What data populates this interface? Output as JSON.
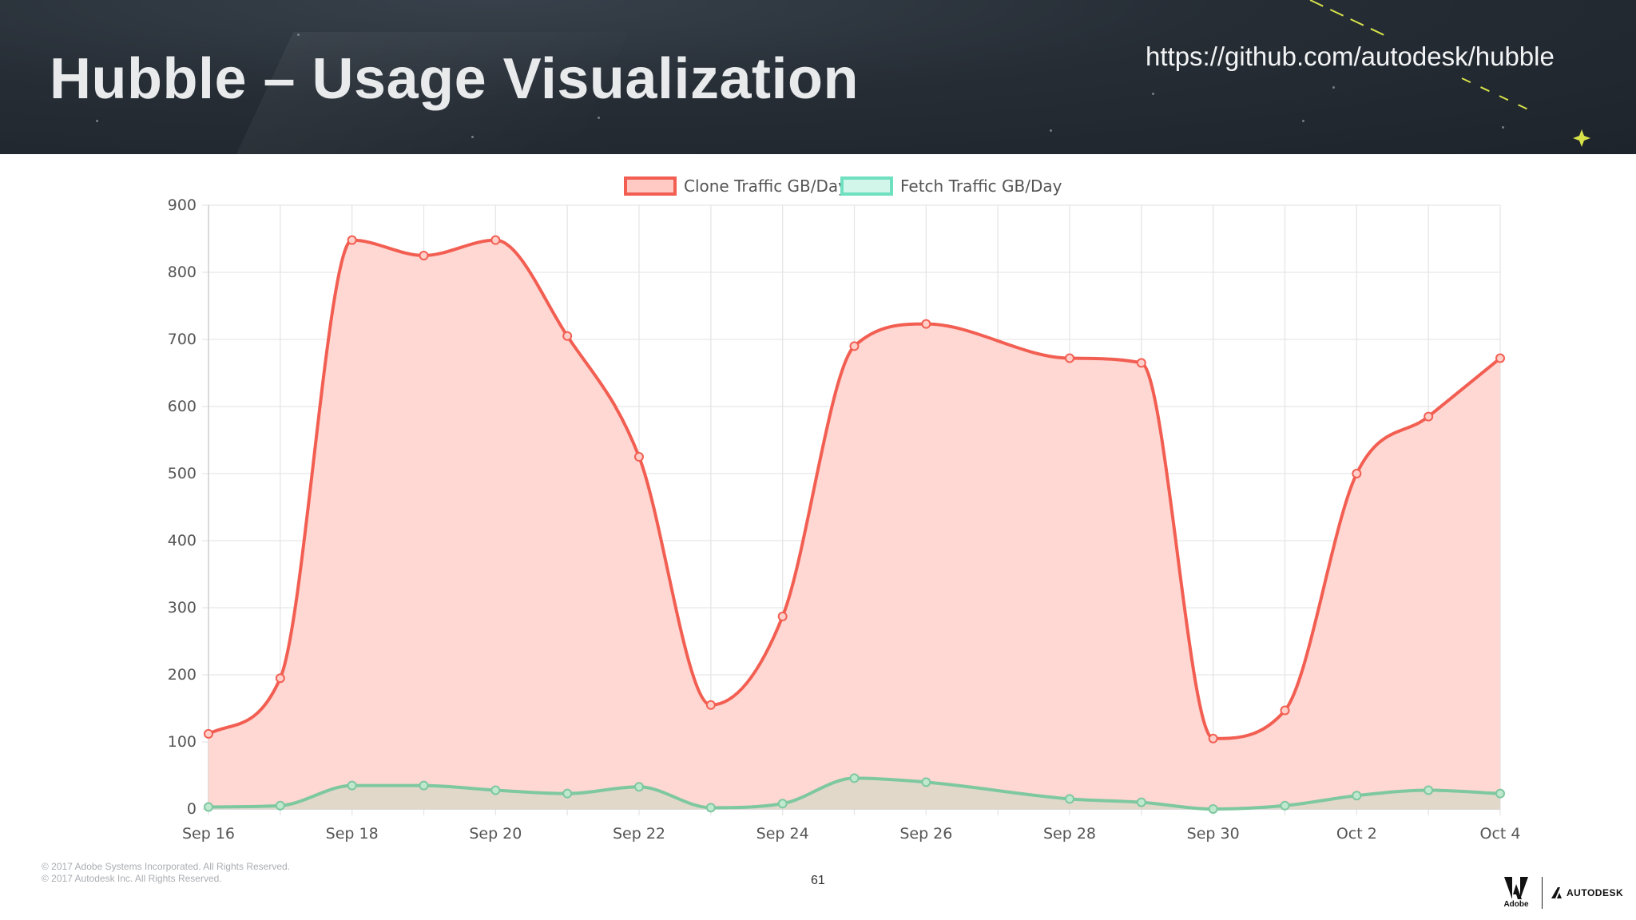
{
  "slide": {
    "title": "Hubble – Usage Visualization",
    "url": "https://github.com/autodesk/hubble",
    "page_number": "61",
    "copyright": [
      "© 2017 Adobe Systems Incorporated.  All Rights Reserved.",
      "© 2017 Autodesk Inc.  All Rights Reserved."
    ],
    "logos": {
      "adobe": "Adobe",
      "autodesk": "AUTODESK"
    }
  },
  "colors": {
    "clone": "#f25f52",
    "fetch": "#7ec8a0",
    "clone_fill": "#ffd7d3",
    "grid": "#e6e6e6"
  },
  "chart_data": {
    "type": "area",
    "x": [
      "Sep 16",
      "Sep 17",
      "Sep 18",
      "Sep 19",
      "Sep 20",
      "Sep 21",
      "Sep 22",
      "Sep 23",
      "Sep 24",
      "Sep 25",
      "Sep 26",
      "Sep 27",
      "Sep 28",
      "Sep 29",
      "Sep 30",
      "Oct 1",
      "Oct 2",
      "Oct 3",
      "Oct 4"
    ],
    "x_tick_labels": [
      "Sep 16",
      "Sep 18",
      "Sep 20",
      "Sep 22",
      "Sep 24",
      "Sep 26",
      "Sep 28",
      "Sep 30",
      "Oct 2",
      "Oct 4"
    ],
    "series": [
      {
        "name": "Clone Traffic GB/Day",
        "values": [
          112,
          195,
          848,
          825,
          848,
          705,
          525,
          155,
          287,
          690,
          723,
          null,
          672,
          665,
          105,
          147,
          500,
          585,
          672
        ]
      },
      {
        "name": "Fetch Traffic GB/Day",
        "values": [
          3,
          5,
          35,
          35,
          28,
          23,
          33,
          2,
          8,
          46,
          40,
          null,
          15,
          10,
          0,
          5,
          20,
          28,
          23
        ]
      }
    ],
    "ylim": [
      0,
      900
    ],
    "y_ticks": [
      0,
      100,
      200,
      300,
      400,
      500,
      600,
      700,
      800,
      900
    ],
    "legend": "top-center",
    "grid": true
  }
}
